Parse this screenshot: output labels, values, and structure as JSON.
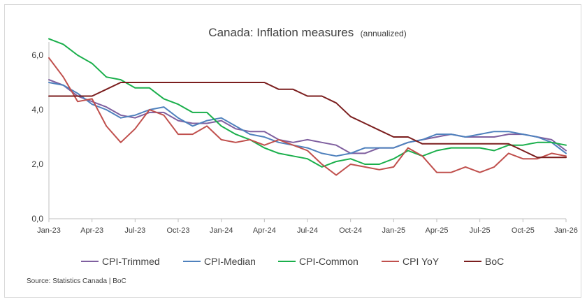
{
  "chart_data": {
    "type": "line",
    "title": "Canada: Inflation measures",
    "subtitle": "(annualized)",
    "xlabel": "",
    "ylabel": "",
    "x_tick_labels": [
      "Jan-23",
      "Apr-23",
      "Jul-23",
      "Oct-23",
      "Jan-24",
      "Apr-24",
      "Jul-24",
      "Oct-24",
      "Jan-25",
      "Apr-25",
      "Jul-25",
      "Oct-25",
      "Jan-26"
    ],
    "y_tick_labels": [
      "0,0",
      "2,0",
      "4,0",
      "6,0"
    ],
    "ylim": [
      0,
      7
    ],
    "grid": false,
    "legend_position": "bottom",
    "x": [
      "Jan-23",
      "Feb-23",
      "Mar-23",
      "Apr-23",
      "May-23",
      "Jun-23",
      "Jul-23",
      "Aug-23",
      "Sep-23",
      "Oct-23",
      "Nov-23",
      "Dec-23",
      "Jan-24",
      "Feb-24",
      "Mar-24",
      "Apr-24",
      "May-24",
      "Jun-24",
      "Jul-24",
      "Aug-24",
      "Sep-24",
      "Oct-24",
      "Nov-24",
      "Dec-24",
      "Jan-25",
      "Feb-25",
      "Mar-25",
      "Apr-25",
      "May-25",
      "Jun-25",
      "Jul-25",
      "Aug-25",
      "Sep-25",
      "Oct-25",
      "Nov-25",
      "Dec-25",
      "Jan-26"
    ],
    "series": [
      {
        "name": "CPI-Trimmed",
        "color": "#7f5f9f",
        "values": [
          5.1,
          4.9,
          4.5,
          4.3,
          4.1,
          3.8,
          3.7,
          3.9,
          3.9,
          3.6,
          3.5,
          3.5,
          3.6,
          3.3,
          3.2,
          3.2,
          2.9,
          2.8,
          2.9,
          2.8,
          2.7,
          2.4,
          2.4,
          2.6,
          2.6,
          2.8,
          2.9,
          3.0,
          3.1,
          3.0,
          3.0,
          3.0,
          3.1,
          3.1,
          3.0,
          2.9,
          2.5
        ]
      },
      {
        "name": "CPI-Median",
        "color": "#4f81bd",
        "values": [
          5.0,
          4.9,
          4.6,
          4.2,
          4.0,
          3.7,
          3.8,
          4.0,
          4.1,
          3.7,
          3.4,
          3.6,
          3.7,
          3.4,
          3.1,
          3.0,
          2.8,
          2.7,
          2.6,
          2.4,
          2.3,
          2.4,
          2.6,
          2.6,
          2.6,
          2.8,
          2.9,
          3.1,
          3.1,
          3.0,
          3.1,
          3.2,
          3.2,
          3.1,
          3.0,
          2.8,
          2.4
        ]
      },
      {
        "name": "CPI-Common",
        "color": "#1aaf4b",
        "values": [
          6.6,
          6.4,
          6.0,
          5.7,
          5.2,
          5.1,
          4.8,
          4.8,
          4.4,
          4.2,
          3.9,
          3.9,
          3.4,
          3.1,
          2.9,
          2.6,
          2.4,
          2.3,
          2.2,
          1.9,
          2.1,
          2.2,
          2.0,
          2.0,
          2.2,
          2.5,
          2.3,
          2.5,
          2.6,
          2.6,
          2.6,
          2.5,
          2.7,
          2.7,
          2.8,
          2.8,
          2.7
        ]
      },
      {
        "name": "CPI YoY",
        "color": "#c0504d",
        "values": [
          5.9,
          5.2,
          4.3,
          4.4,
          3.4,
          2.8,
          3.3,
          4.0,
          3.8,
          3.1,
          3.1,
          3.4,
          2.9,
          2.8,
          2.9,
          2.7,
          2.9,
          2.7,
          2.5,
          2.0,
          1.6,
          2.0,
          1.9,
          1.8,
          1.9,
          2.6,
          2.3,
          1.7,
          1.7,
          1.9,
          1.7,
          1.9,
          2.4,
          2.2,
          2.2,
          2.4,
          2.3
        ]
      },
      {
        "name": "BoC",
        "color": "#7b1e1e",
        "values": [
          4.5,
          4.5,
          4.5,
          4.5,
          4.75,
          5.0,
          5.0,
          5.0,
          5.0,
          5.0,
          5.0,
          5.0,
          5.0,
          5.0,
          5.0,
          5.0,
          4.75,
          4.75,
          4.5,
          4.5,
          4.25,
          3.75,
          3.5,
          3.25,
          3.0,
          3.0,
          2.75,
          2.75,
          2.75,
          2.75,
          2.75,
          2.75,
          2.75,
          2.5,
          2.25,
          2.25,
          2.25
        ]
      }
    ]
  },
  "source": "Source: Statistics Canada | BoC"
}
